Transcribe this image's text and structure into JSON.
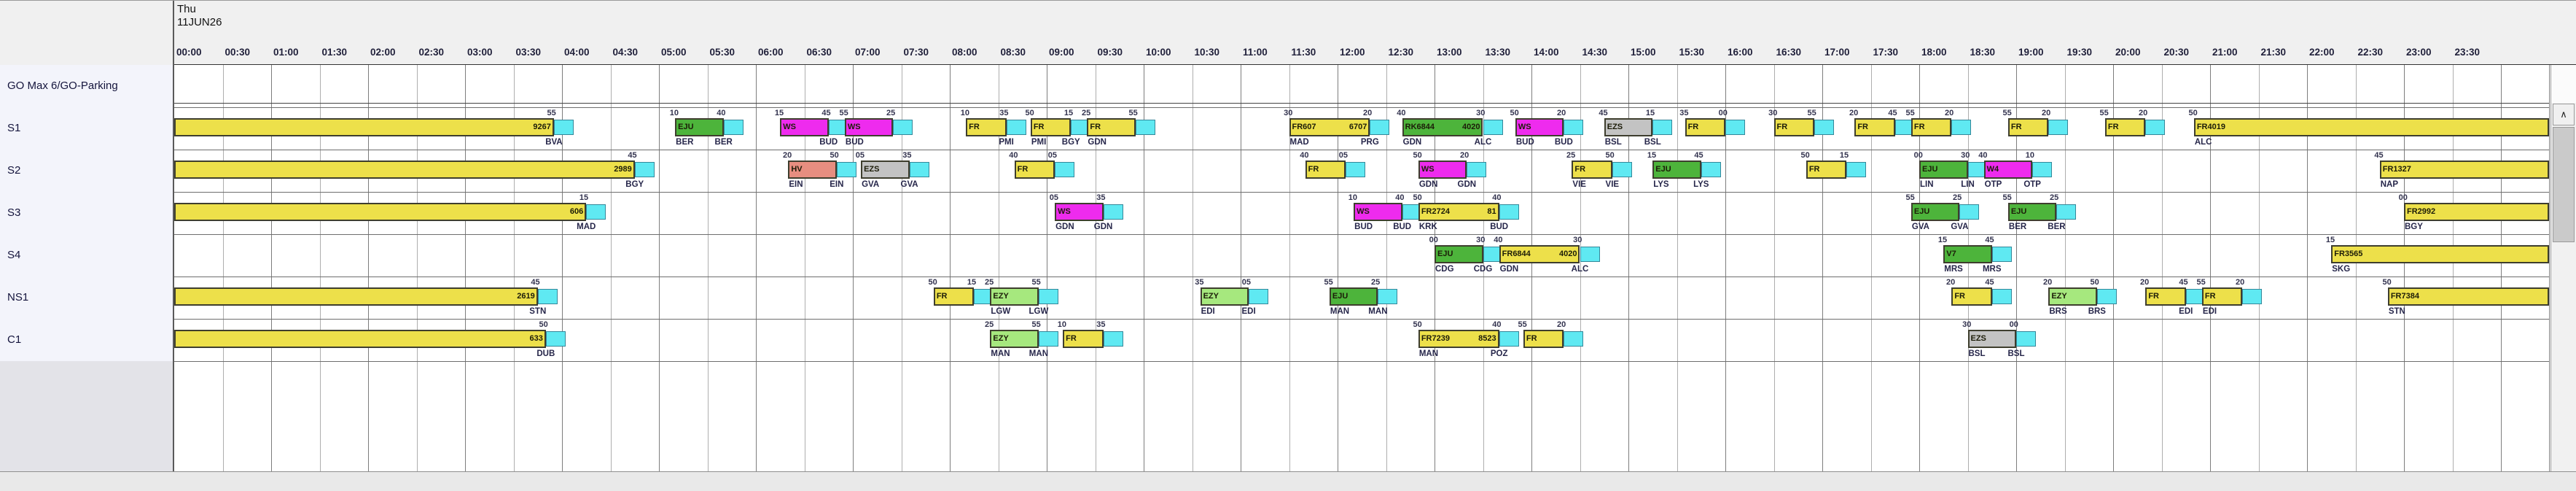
{
  "header": {
    "day": "Thu",
    "date": "11JUN26",
    "times": [
      "00:00",
      "00:30",
      "01:00",
      "01:30",
      "02:00",
      "02:30",
      "03:00",
      "03:30",
      "04:00",
      "04:30",
      "05:00",
      "05:30",
      "06:00",
      "06:30",
      "07:00",
      "07:30",
      "08:00",
      "08:30",
      "09:00",
      "09:30",
      "10:00",
      "10:30",
      "11:00",
      "11:30",
      "12:00",
      "12:30",
      "13:00",
      "13:30",
      "14:00",
      "14:30",
      "15:00",
      "15:30",
      "16:00",
      "16:30",
      "17:00",
      "17:30",
      "18:00",
      "18:30",
      "19:00",
      "19:30",
      "20:00",
      "20:30",
      "21:00",
      "21:30",
      "22:00",
      "22:30",
      "23:00",
      "23:30"
    ]
  },
  "colors": {
    "yellow": "#ede04a",
    "green": "#4db43b",
    "lightgreen": "#a6e87e",
    "magenta": "#ee2bee",
    "salmon": "#e78e80",
    "gray": "#c3c3c3",
    "cyan": "#5fe9f2"
  },
  "scrollbar": {
    "up_arrow": "∧"
  },
  "resources": [
    {
      "label": "GO Max 6/GO-Parking",
      "bars": []
    },
    {
      "label": "S1",
      "bars": [
        {
          "start": "00:00",
          "end": "03:55",
          "color": "yellow",
          "label_right": "9267",
          "min_right": "55",
          "airport_right": "BVA",
          "buffer": true,
          "clipped": "start"
        },
        {
          "start": "05:10",
          "end": "05:40",
          "color": "green",
          "label_left": "EJU",
          "min_left": "10",
          "min_right": "40",
          "airport_left": "BER",
          "airport_right": "BER",
          "buffer": true
        },
        {
          "start": "06:15",
          "end": "06:45",
          "color": "magenta",
          "label_left": "WS",
          "min_left": "15",
          "min_right": "45",
          "airport_right": "BUD",
          "buffer": true
        },
        {
          "start": "06:55",
          "end": "07:25",
          "color": "magenta",
          "label_left": "WS",
          "min_left": "55",
          "min_right": "25",
          "airport_left": "BUD",
          "buffer": true
        },
        {
          "start": "08:10",
          "end": "08:35",
          "color": "yellow",
          "label_left": "FR",
          "min_left": "10",
          "min_right": "35",
          "airport_right": "PMI",
          "buffer": true
        },
        {
          "start": "08:50",
          "end": "09:15",
          "color": "yellow",
          "label_left": "FR",
          "min_left": "50",
          "min_right": "15",
          "airport_left": "PMI",
          "airport_right": "BGY",
          "buffer": true
        },
        {
          "start": "09:25",
          "end": "09:55",
          "color": "yellow",
          "label_left": "FR",
          "min_left": "25",
          "min_right": "55",
          "airport_left": "GDN",
          "buffer": true
        },
        {
          "start": "11:30",
          "end": "12:20",
          "color": "yellow",
          "label_left": "FR607",
          "label_right": "6707",
          "min_left": "30",
          "min_right": "20",
          "airport_left": "MAD",
          "airport_right": "PRG",
          "buffer": true
        },
        {
          "start": "12:40",
          "end": "13:30",
          "color": "green",
          "label_left": "RK6844",
          "label_right": "4020",
          "min_left": "40",
          "min_right": "30",
          "airport_left": "GDN",
          "airport_right": "ALC",
          "buffer": true
        },
        {
          "start": "13:50",
          "end": "14:20",
          "color": "magenta",
          "label_left": "WS",
          "min_left": "50",
          "min_right": "20",
          "airport_left": "BUD",
          "airport_right": "BUD",
          "buffer": true
        },
        {
          "start": "14:45",
          "end": "15:15",
          "color": "gray",
          "label_left": "EZS",
          "min_left": "45",
          "min_right": "15",
          "airport_left": "BSL",
          "airport_right": "BSL",
          "buffer": true
        },
        {
          "start": "15:35",
          "end": "16:00",
          "color": "yellow",
          "label_left": "FR",
          "min_left": "35",
          "min_right": "00",
          "buffer": true
        },
        {
          "start": "16:30",
          "end": "16:55",
          "color": "yellow",
          "label_left": "FR",
          "min_left": "30",
          "min_right": "55",
          "buffer": true
        },
        {
          "start": "17:20",
          "end": "17:45",
          "color": "yellow",
          "label_left": "FR",
          "min_left": "20",
          "min_right": "45",
          "buffer": true
        },
        {
          "start": "17:55",
          "end": "18:20",
          "color": "yellow",
          "label_left": "FR",
          "min_left": "55",
          "min_right": "20",
          "buffer": true
        },
        {
          "start": "18:55",
          "end": "19:20",
          "color": "yellow",
          "label_left": "FR",
          "min_left": "55",
          "min_right": "20",
          "buffer": true
        },
        {
          "start": "19:55",
          "end": "20:20",
          "color": "yellow",
          "label_left": "FR",
          "min_left": "55",
          "min_right": "20",
          "buffer": true
        },
        {
          "start": "20:50",
          "end": "24:30",
          "color": "yellow",
          "label_left": "FR4019",
          "min_left": "50",
          "airport_left": "ALC",
          "clipped": "end"
        }
      ]
    },
    {
      "label": "S2",
      "bars": [
        {
          "start": "00:00",
          "end": "04:45",
          "color": "yellow",
          "label_right": "2989",
          "min_right": "45",
          "airport_right": "BGY",
          "buffer": true,
          "clipped": "start"
        },
        {
          "start": "06:20",
          "end": "06:50",
          "color": "salmon",
          "label_left": "HV",
          "min_left": "20",
          "min_right": "50",
          "airport_left": "EIN",
          "airport_right": "EIN",
          "buffer": true
        },
        {
          "start": "07:05",
          "end": "07:35",
          "color": "gray",
          "label_left": "EZS",
          "min_left": "05",
          "min_right": "35",
          "airport_left": "GVA",
          "airport_right": "GVA",
          "buffer": true
        },
        {
          "start": "08:40",
          "end": "09:05",
          "color": "yellow",
          "label_left": "FR",
          "min_left": "40",
          "min_right": "05",
          "buffer": true
        },
        {
          "start": "11:40",
          "end": "12:05",
          "color": "yellow",
          "label_left": "FR",
          "min_left": "40",
          "min_right": "05",
          "buffer": true
        },
        {
          "start": "12:50",
          "end": "13:20",
          "color": "magenta",
          "label_left": "WS",
          "min_left": "50",
          "min_right": "20",
          "airport_left": "GDN",
          "airport_right": "GDN",
          "buffer": true
        },
        {
          "start": "14:25",
          "end": "14:50",
          "color": "yellow",
          "label_left": "FR",
          "min_left": "25",
          "min_right": "50",
          "airport_left": "VIE",
          "airport_right": "VIE",
          "buffer": true
        },
        {
          "start": "15:15",
          "end": "15:45",
          "color": "green",
          "label_left": "EJU",
          "min_left": "15",
          "min_right": "45",
          "airport_left": "LYS",
          "airport_right": "LYS",
          "buffer": true
        },
        {
          "start": "16:50",
          "end": "17:15",
          "color": "yellow",
          "label_left": "FR",
          "min_left": "50",
          "min_right": "15",
          "buffer": true
        },
        {
          "start": "18:00",
          "end": "18:30",
          "color": "green",
          "label_left": "EJU",
          "min_left": "00",
          "min_right": "30",
          "airport_left": "LIN",
          "airport_right": "LIN",
          "buffer": true
        },
        {
          "start": "18:40",
          "end": "19:10",
          "color": "magenta",
          "label_left": "W4",
          "min_left": "40",
          "min_right": "10",
          "airport_left": "OTP",
          "airport_right": "OTP",
          "buffer": true
        },
        {
          "start": "22:45",
          "end": "24:30",
          "color": "yellow",
          "label_left": "FR1327",
          "min_left": "45",
          "airport_left": "NAP",
          "clipped": "end"
        }
      ]
    },
    {
      "label": "S3",
      "bars": [
        {
          "start": "00:00",
          "end": "04:15",
          "color": "yellow",
          "label_right": "606",
          "min_right": "15",
          "airport_right": "MAD",
          "buffer": true,
          "clipped": "start"
        },
        {
          "start": "09:05",
          "end": "09:35",
          "color": "magenta",
          "label_left": "WS",
          "min_left": "05",
          "min_right": "35",
          "airport_left": "GDN",
          "airport_right": "GDN",
          "buffer": true
        },
        {
          "start": "12:10",
          "end": "12:40",
          "color": "magenta",
          "label_left": "WS",
          "min_left": "10",
          "min_right": "40",
          "airport_left": "BUD",
          "airport_right": "BUD",
          "buffer": true
        },
        {
          "start": "12:50",
          "end": "13:40",
          "color": "yellow",
          "label_left": "FR2724",
          "label_right": "81",
          "min_left": "50",
          "min_right": "40",
          "airport_left": "KRK",
          "airport_right": "BUD",
          "buffer": true
        },
        {
          "start": "17:55",
          "end": "18:25",
          "color": "green",
          "label_left": "EJU",
          "min_left": "55",
          "min_right": "25",
          "airport_left": "GVA",
          "airport_right": "GVA",
          "buffer": true
        },
        {
          "start": "18:55",
          "end": "19:25",
          "color": "green",
          "label_left": "EJU",
          "min_left": "55",
          "min_right": "25",
          "airport_left": "BER",
          "airport_right": "BER",
          "buffer": true
        },
        {
          "start": "23:00",
          "end": "24:30",
          "color": "yellow",
          "label_left": "FR2992",
          "min_left": "00",
          "airport_left": "BGY",
          "clipped": "end"
        }
      ]
    },
    {
      "label": "S4",
      "bars": [
        {
          "start": "13:00",
          "end": "13:30",
          "color": "green",
          "label_left": "EJU",
          "min_left": "00",
          "min_right": "30",
          "airport_left": "CDG",
          "airport_right": "CDG",
          "buffer": true
        },
        {
          "start": "13:40",
          "end": "14:30",
          "color": "yellow",
          "label_left": "FR6844",
          "label_right": "4020",
          "min_left": "40",
          "min_right": "30",
          "airport_left": "GDN",
          "airport_right": "ALC",
          "buffer": true
        },
        {
          "start": "18:15",
          "end": "18:45",
          "color": "green",
          "label_left": "V7",
          "min_left": "15",
          "min_right": "45",
          "airport_left": "MRS",
          "airport_right": "MRS",
          "buffer": true
        },
        {
          "start": "22:15",
          "end": "24:30",
          "color": "yellow",
          "label_left": "FR3565",
          "min_left": "15",
          "airport_left": "SKG",
          "clipped": "end"
        }
      ]
    },
    {
      "label": "NS1",
      "bars": [
        {
          "start": "00:00",
          "end": "03:45",
          "color": "yellow",
          "label_right": "2619",
          "min_right": "45",
          "airport_right": "STN",
          "buffer": true,
          "clipped": "start"
        },
        {
          "start": "07:50",
          "end": "08:15",
          "color": "yellow",
          "label_left": "FR",
          "min_left": "50",
          "min_right": "15",
          "buffer": true
        },
        {
          "start": "08:25",
          "end": "08:55",
          "color": "lightgreen",
          "label_left": "EZY",
          "min_left": "25",
          "min_right": "55",
          "airport_left": "LGW",
          "airport_right": "LGW",
          "buffer": true
        },
        {
          "start": "10:35",
          "end": "11:05",
          "color": "lightgreen",
          "label_left": "EZY",
          "min_left": "35",
          "min_right": "05",
          "airport_left": "EDI",
          "airport_right": "EDI",
          "buffer": true
        },
        {
          "start": "11:55",
          "end": "12:25",
          "color": "green",
          "label_left": "EJU",
          "min_left": "55",
          "min_right": "25",
          "airport_left": "MAN",
          "airport_right": "MAN",
          "buffer": true
        },
        {
          "start": "18:20",
          "end": "18:45",
          "color": "yellow",
          "label_left": "FR",
          "min_left": "20",
          "min_right": "45",
          "buffer": true
        },
        {
          "start": "19:20",
          "end": "19:50",
          "color": "lightgreen",
          "label_left": "EZY",
          "min_left": "20",
          "min_right": "50",
          "airport_left": "BRS",
          "airport_right": "BRS",
          "buffer": true
        },
        {
          "start": "20:20",
          "end": "20:45",
          "color": "yellow",
          "label_left": "FR",
          "min_left": "20",
          "min_right": "45",
          "airport_right": "EDI",
          "buffer": true
        },
        {
          "start": "20:55",
          "end": "21:20",
          "color": "yellow",
          "label_left": "FR",
          "min_left": "55",
          "min_right": "20",
          "airport_left": "EDI",
          "buffer": true
        },
        {
          "start": "22:50",
          "end": "24:30",
          "color": "yellow",
          "label_left": "FR7384",
          "min_left": "50",
          "airport_left": "STN",
          "clipped": "end"
        }
      ]
    },
    {
      "label": "C1",
      "bars": [
        {
          "start": "00:00",
          "end": "03:50",
          "color": "yellow",
          "label_right": "633",
          "min_right": "50",
          "airport_right": "DUB",
          "buffer": true,
          "clipped": "start"
        },
        {
          "start": "08:25",
          "end": "08:55",
          "color": "lightgreen",
          "label_left": "EZY",
          "min_left": "25",
          "min_right": "55",
          "airport_left": "MAN",
          "airport_right": "MAN",
          "buffer": true
        },
        {
          "start": "09:10",
          "end": "09:35",
          "color": "yellow",
          "label_left": "FR",
          "min_left": "10",
          "min_right": "35",
          "buffer": true
        },
        {
          "start": "12:50",
          "end": "13:40",
          "color": "yellow",
          "label_left": "FR7239",
          "label_right": "8523",
          "min_left": "50",
          "min_right": "40",
          "airport_left": "MAN",
          "airport_right": "POZ",
          "buffer": true
        },
        {
          "start": "13:55",
          "end": "14:20",
          "color": "yellow",
          "label_left": "FR",
          "min_left": "55",
          "min_right": "20",
          "buffer": true
        },
        {
          "start": "18:30",
          "end": "19:00",
          "color": "gray",
          "label_left": "EZS",
          "min_left": "30",
          "min_right": "00",
          "airport_left": "BSL",
          "airport_right": "BSL",
          "buffer": true
        }
      ]
    }
  ]
}
